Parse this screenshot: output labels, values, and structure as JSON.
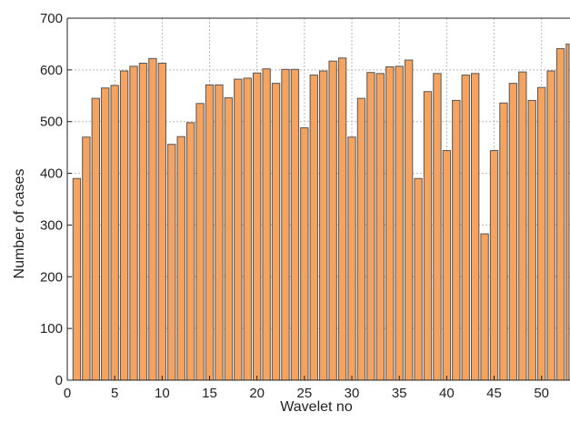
{
  "chart_data": {
    "type": "bar",
    "xlabel": "Wavelet no",
    "ylabel": "Number of cases",
    "xlim": [
      0,
      53
    ],
    "ylim": [
      0,
      700
    ],
    "xticks": [
      0,
      5,
      10,
      15,
      20,
      25,
      30,
      35,
      40,
      45,
      50
    ],
    "yticks": [
      0,
      100,
      200,
      300,
      400,
      500,
      600,
      700
    ],
    "grid": true,
    "x": [
      1,
      2,
      3,
      4,
      5,
      6,
      7,
      8,
      9,
      10,
      11,
      12,
      13,
      14,
      15,
      16,
      17,
      18,
      19,
      20,
      21,
      22,
      23,
      24,
      25,
      26,
      27,
      28,
      29,
      30,
      31,
      32,
      33,
      34,
      35,
      36,
      37,
      38,
      39,
      40,
      41,
      42,
      43,
      44,
      45,
      46,
      47,
      48,
      49,
      50,
      51,
      52,
      53
    ],
    "values": [
      390,
      470,
      545,
      565,
      570,
      598,
      607,
      613,
      622,
      613,
      456,
      471,
      498,
      535,
      571,
      571,
      546,
      582,
      584,
      594,
      602,
      574,
      601,
      601,
      488,
      590,
      598,
      617,
      623,
      470,
      545,
      595,
      593,
      606,
      607,
      619,
      390,
      558,
      593,
      444,
      541,
      590,
      593,
      283,
      444,
      536,
      574,
      596,
      541,
      566,
      598,
      641,
      650
    ],
    "colors": {
      "bar_fill": "#f5a35e",
      "bar_stroke": "#555555",
      "grid": "#b8b8b8",
      "axis": "#222222"
    }
  }
}
